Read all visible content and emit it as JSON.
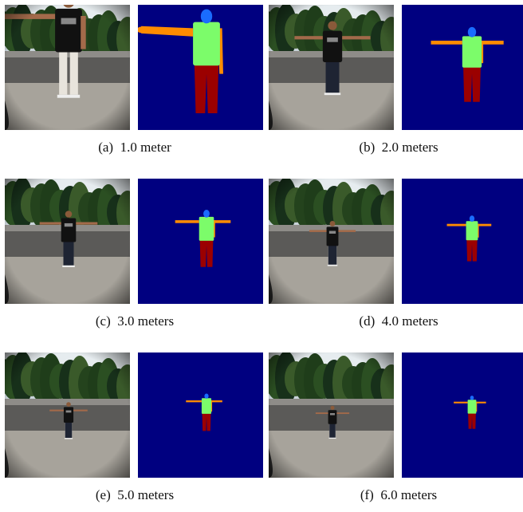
{
  "figure": {
    "subfigures": [
      {
        "label": "(a)",
        "caption": "1.0 meter"
      },
      {
        "label": "(b)",
        "caption": "2.0 meters"
      },
      {
        "label": "(c)",
        "caption": "3.0 meters"
      },
      {
        "label": "(d)",
        "caption": "4.0 meters"
      },
      {
        "label": "(e)",
        "caption": "5.0 meters"
      },
      {
        "label": "(f)",
        "caption": "6.0 meters"
      }
    ]
  },
  "colors": {
    "background": "#000080",
    "head": "#1a6cff",
    "torso": "#7cfc6a",
    "arms": "#ff8c00",
    "legs": "#9b0000"
  }
}
